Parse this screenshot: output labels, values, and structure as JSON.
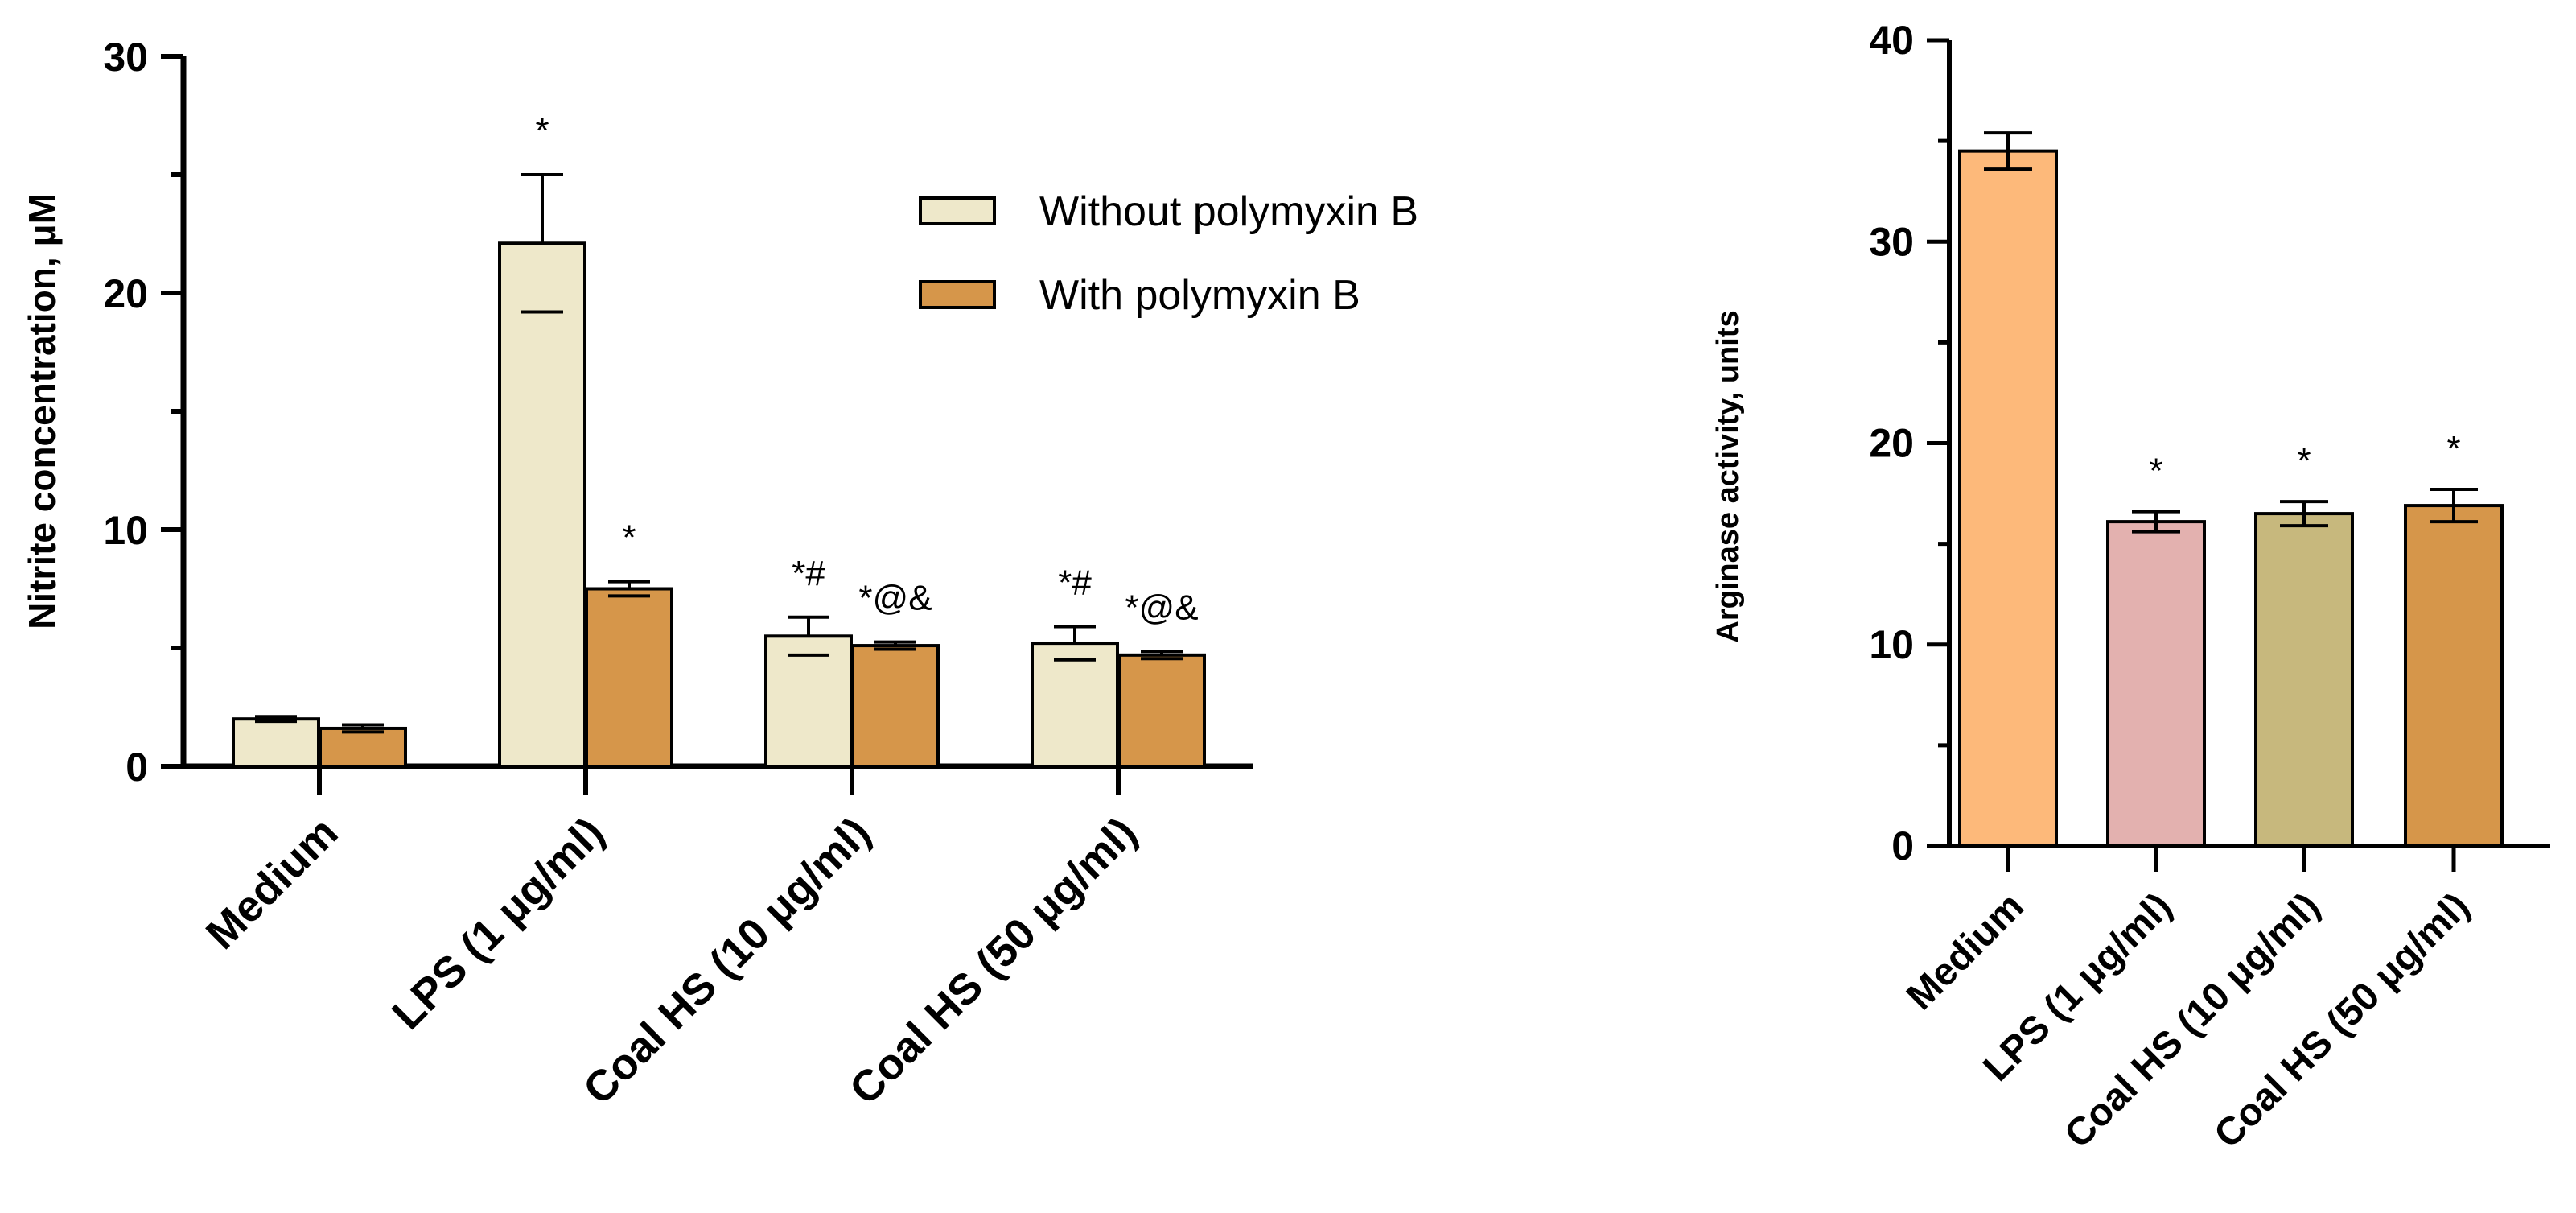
{
  "chart_data": [
    {
      "type": "bar",
      "title": "",
      "xlabel": "",
      "ylabel": "Nitrite concentration, μM",
      "ylim": [
        0,
        30
      ],
      "yticks": [
        0,
        10,
        20,
        30
      ],
      "categories": [
        "Medium",
        "LPS (1 μg/ml)",
        "Coal HS (10 μg/ml)",
        "Coal HS (50 μg/ml)"
      ],
      "legend_position": "top-right",
      "series": [
        {
          "name": "Without polymyxin B",
          "color": "#EEE8CA",
          "values": [
            2.0,
            22.1,
            5.5,
            5.2
          ],
          "errors": [
            0.1,
            2.9,
            0.8,
            0.7
          ],
          "annotations": [
            "",
            "*",
            "*#",
            "*#"
          ]
        },
        {
          "name": "With polymyxin B",
          "color": "#D6964A",
          "values": [
            1.6,
            7.5,
            5.1,
            4.7
          ],
          "errors": [
            0.15,
            0.3,
            0.15,
            0.15
          ],
          "annotations": [
            "",
            "*",
            "*@&",
            "*@&"
          ]
        }
      ]
    },
    {
      "type": "bar",
      "title": "",
      "xlabel": "",
      "ylabel": "Arginase activity, units",
      "ylim": [
        0,
        40
      ],
      "yticks": [
        0,
        10,
        20,
        30,
        40
      ],
      "categories": [
        "Medium",
        "LPS (1 μg/ml)",
        "Coal HS (10 μg/ml)",
        "Coal HS (50 μg/ml)"
      ],
      "series": [
        {
          "name": "Arginase activity",
          "values": [
            34.5,
            16.1,
            16.5,
            16.9
          ],
          "errors": [
            0.9,
            0.5,
            0.6,
            0.8
          ],
          "colors": [
            "#FDB97A",
            "#E3B1AF",
            "#C7B87D",
            "#D6964A"
          ],
          "annotations": [
            "",
            "*",
            "*",
            "*"
          ]
        }
      ]
    }
  ]
}
